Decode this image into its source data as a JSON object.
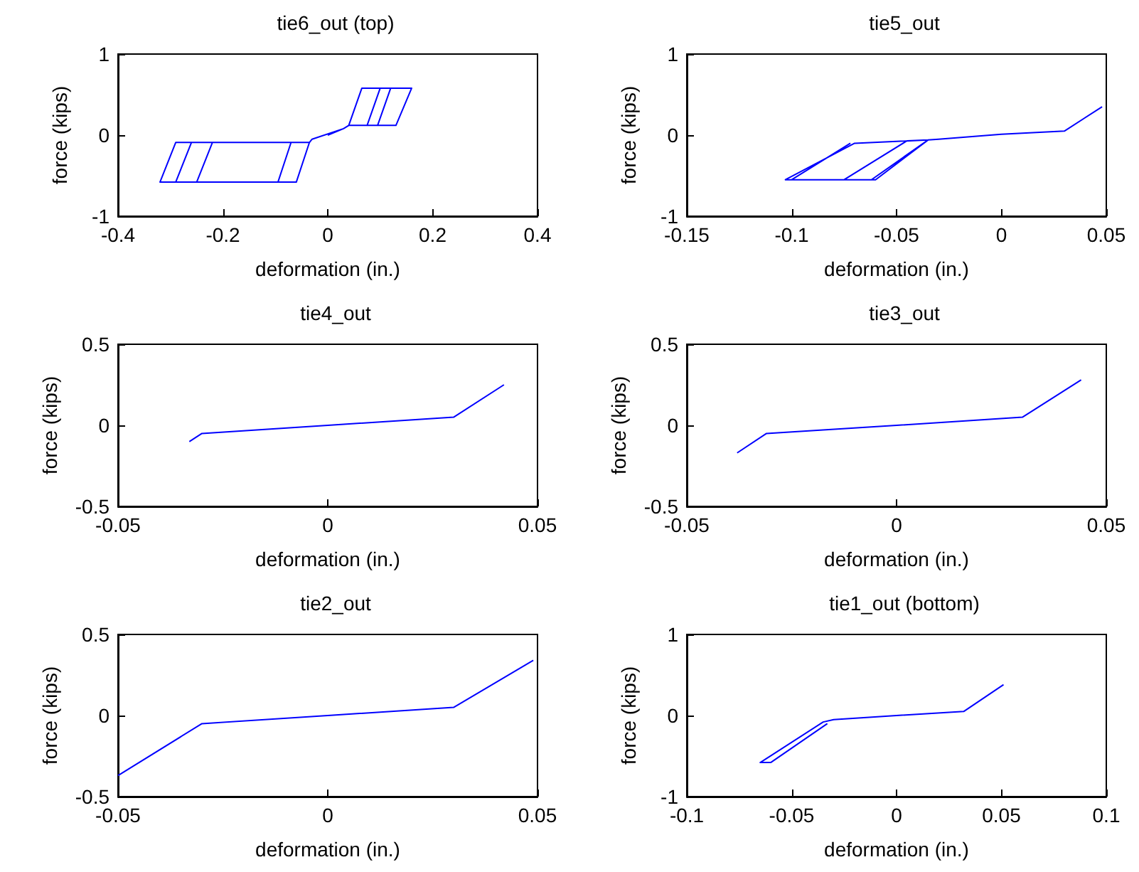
{
  "chart_data": [
    {
      "type": "line",
      "title": "tie6_out (top)",
      "xlabel": "deformation (in.)",
      "ylabel": "force (kips)",
      "xlim": [
        -0.4,
        0.4
      ],
      "ylim": [
        -1,
        1
      ],
      "xticks": [
        -0.4,
        -0.2,
        0,
        0.2,
        0.4
      ],
      "yticks": [
        -1,
        0,
        1
      ],
      "grid": false,
      "marker": "none",
      "series": [
        {
          "color": "#0000ff",
          "x": [
            0,
            0.03,
            0.04,
            0.065,
            0.1,
            0.075,
            0.04,
            0.065,
            0.12,
            0.095,
            0.04,
            0.065,
            0.16,
            0.13,
            0.04,
            0.03,
            -0.03,
            -0.035,
            -0.06,
            -0.25,
            -0.22,
            -0.035,
            -0.06,
            -0.29,
            -0.26,
            -0.035,
            -0.06,
            -0.32,
            -0.29,
            -0.07,
            -0.095
          ],
          "values": [
            0,
            0.08,
            0.12,
            0.58,
            0.58,
            0.12,
            0.12,
            0.58,
            0.58,
            0.12,
            0.12,
            0.58,
            0.58,
            0.12,
            0.12,
            0.08,
            -0.05,
            -0.09,
            -0.58,
            -0.58,
            -0.09,
            -0.09,
            -0.58,
            -0.58,
            -0.09,
            -0.09,
            -0.58,
            -0.58,
            -0.09,
            -0.09,
            -0.58
          ]
        }
      ]
    },
    {
      "type": "line",
      "title": "tie5_out",
      "xlabel": "deformation (in.)",
      "ylabel": "force (kips)",
      "xlim": [
        -0.15,
        0.05
      ],
      "ylim": [
        -1,
        1
      ],
      "xticks": [
        -0.15,
        -0.1,
        -0.05,
        0,
        0.05
      ],
      "yticks": [
        -1,
        0,
        1
      ],
      "grid": false,
      "marker": "none",
      "series": [
        {
          "color": "#0000ff",
          "x": [
            0.048,
            0.03,
            0,
            -0.03,
            -0.035,
            -0.06,
            -0.103,
            -0.07,
            -0.035,
            -0.06,
            -0.075,
            -0.045,
            -0.035,
            -0.062,
            -0.1,
            -0.072
          ],
          "values": [
            0.35,
            0.05,
            0.01,
            -0.05,
            -0.06,
            -0.55,
            -0.55,
            -0.1,
            -0.06,
            -0.55,
            -0.55,
            -0.07,
            -0.06,
            -0.55,
            -0.55,
            -0.1
          ]
        }
      ]
    },
    {
      "type": "line",
      "title": "tie4_out",
      "xlabel": "deformation (in.)",
      "ylabel": "force (kips)",
      "xlim": [
        -0.05,
        0.05
      ],
      "ylim": [
        -0.5,
        0.5
      ],
      "xticks": [
        -0.05,
        0,
        0.05
      ],
      "yticks": [
        -0.5,
        0,
        0.5
      ],
      "grid": false,
      "marker": "none",
      "series": [
        {
          "color": "#0000ff",
          "x": [
            -0.033,
            -0.03,
            0,
            0.03,
            0.042
          ],
          "values": [
            -0.1,
            -0.05,
            0,
            0.05,
            0.25
          ]
        }
      ]
    },
    {
      "type": "line",
      "title": "tie3_out",
      "xlabel": "deformation (in.)",
      "ylabel": "force (kips)",
      "xlim": [
        -0.05,
        0.05
      ],
      "ylim": [
        -0.5,
        0.5
      ],
      "xticks": [
        -0.05,
        0,
        0.05
      ],
      "yticks": [
        -0.5,
        0,
        0.5
      ],
      "grid": false,
      "marker": "none",
      "series": [
        {
          "color": "#0000ff",
          "x": [
            -0.038,
            -0.031,
            0,
            0.03,
            0.044
          ],
          "values": [
            -0.17,
            -0.05,
            0,
            0.05,
            0.28
          ]
        }
      ]
    },
    {
      "type": "line",
      "title": "tie2_out",
      "xlabel": "deformation (in.)",
      "ylabel": "force (kips)",
      "xlim": [
        -0.05,
        0.05
      ],
      "ylim": [
        -0.5,
        0.5
      ],
      "xticks": [
        -0.05,
        0,
        0.05
      ],
      "yticks": [
        -0.5,
        0,
        0.5
      ],
      "grid": false,
      "marker": "none",
      "series": [
        {
          "color": "#0000ff",
          "x": [
            -0.05,
            -0.03,
            0,
            0.03,
            0.049
          ],
          "values": [
            -0.37,
            -0.05,
            0,
            0.05,
            0.34
          ]
        }
      ]
    },
    {
      "type": "line",
      "title": "tie1_out (bottom)",
      "xlabel": "deformation (in.)",
      "ylabel": "force (kips)",
      "xlim": [
        -0.1,
        0.1
      ],
      "ylim": [
        -1,
        1
      ],
      "xticks": [
        -0.1,
        -0.05,
        0,
        0.05,
        0.1
      ],
      "yticks": [
        -1,
        0,
        1
      ],
      "grid": false,
      "marker": "none",
      "series": [
        {
          "color": "#0000ff",
          "x": [
            0.051,
            0.032,
            0,
            -0.03,
            -0.035,
            -0.065,
            -0.06,
            -0.033
          ],
          "values": [
            0.38,
            0.05,
            0,
            -0.05,
            -0.08,
            -0.58,
            -0.58,
            -0.1
          ]
        }
      ]
    }
  ]
}
